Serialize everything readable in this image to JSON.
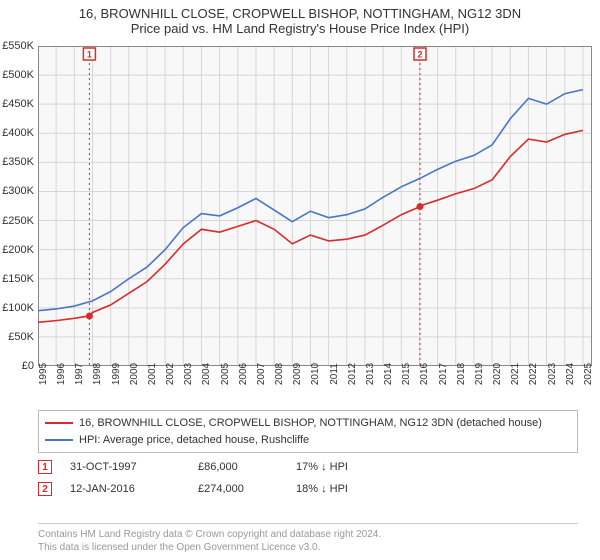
{
  "title_line1": "16, BROWNHILL CLOSE, CROPWELL BISHOP, NOTTINGHAM, NG12 3DN",
  "title_line2": "Price paid vs. HM Land Registry's House Price Index (HPI)",
  "chart": {
    "type": "line",
    "background_color": "#ffffff",
    "plot_bg_color": "#f8f8f8",
    "grid_color": "#d6d6d6",
    "axis_color": "#888888",
    "y": {
      "min": 0,
      "max": 550,
      "unit": "K",
      "prefix": "£",
      "ticks": [
        0,
        50,
        100,
        150,
        200,
        250,
        300,
        350,
        400,
        450,
        500,
        550
      ]
    },
    "x": {
      "min": 1995,
      "max": 2025.5,
      "ticks": [
        1995,
        1996,
        1997,
        1998,
        1999,
        2000,
        2001,
        2002,
        2003,
        2004,
        2005,
        2006,
        2007,
        2008,
        2009,
        2010,
        2011,
        2012,
        2013,
        2014,
        2015,
        2016,
        2017,
        2018,
        2019,
        2020,
        2021,
        2022,
        2023,
        2024,
        2025
      ]
    },
    "series": [
      {
        "name": "property",
        "label": "16, BROWNHILL CLOSE, CROPWELL BISHOP, NOTTINGHAM, NG12 3DN (detached house)",
        "color": "#d92b2b",
        "line_width": 1.6,
        "data": [
          [
            1995,
            75
          ],
          [
            1996,
            78
          ],
          [
            1997,
            82
          ],
          [
            1997.83,
            86
          ],
          [
            1998,
            92
          ],
          [
            1999,
            105
          ],
          [
            2000,
            125
          ],
          [
            2001,
            145
          ],
          [
            2002,
            175
          ],
          [
            2003,
            210
          ],
          [
            2004,
            235
          ],
          [
            2005,
            230
          ],
          [
            2006,
            240
          ],
          [
            2007,
            250
          ],
          [
            2008,
            235
          ],
          [
            2009,
            210
          ],
          [
            2010,
            225
          ],
          [
            2011,
            215
          ],
          [
            2012,
            218
          ],
          [
            2013,
            225
          ],
          [
            2014,
            242
          ],
          [
            2015,
            260
          ],
          [
            2016.03,
            274
          ],
          [
            2016,
            275
          ],
          [
            2017,
            285
          ],
          [
            2018,
            296
          ],
          [
            2019,
            305
          ],
          [
            2020,
            320
          ],
          [
            2021,
            360
          ],
          [
            2022,
            390
          ],
          [
            2023,
            385
          ],
          [
            2024,
            398
          ],
          [
            2025,
            405
          ]
        ]
      },
      {
        "name": "hpi",
        "label": "HPI: Average price, detached house, Rushcliffe",
        "color": "#4a74c9",
        "line_width": 1.6,
        "data": [
          [
            1995,
            95
          ],
          [
            1996,
            98
          ],
          [
            1997,
            103
          ],
          [
            1998,
            112
          ],
          [
            1999,
            128
          ],
          [
            2000,
            150
          ],
          [
            2001,
            170
          ],
          [
            2002,
            200
          ],
          [
            2003,
            238
          ],
          [
            2004,
            262
          ],
          [
            2005,
            258
          ],
          [
            2006,
            272
          ],
          [
            2007,
            288
          ],
          [
            2008,
            268
          ],
          [
            2009,
            248
          ],
          [
            2010,
            266
          ],
          [
            2011,
            255
          ],
          [
            2012,
            260
          ],
          [
            2013,
            270
          ],
          [
            2014,
            290
          ],
          [
            2015,
            308
          ],
          [
            2016,
            322
          ],
          [
            2017,
            338
          ],
          [
            2018,
            352
          ],
          [
            2019,
            362
          ],
          [
            2020,
            380
          ],
          [
            2021,
            425
          ],
          [
            2022,
            460
          ],
          [
            2023,
            450
          ],
          [
            2024,
            468
          ],
          [
            2025,
            475
          ]
        ]
      }
    ],
    "markers": [
      {
        "n": "1",
        "x": 1997.83,
        "y": 86,
        "color": "#d92b2b"
      },
      {
        "n": "2",
        "x": 2016.03,
        "y": 274,
        "color": "#d92b2b"
      }
    ],
    "annotations": [
      {
        "n": "1",
        "x": 1997.83,
        "color": "#d92b2b",
        "dash": "2,3"
      },
      {
        "n": "2",
        "x": 2016.03,
        "color": "#d92b2b",
        "dash": "2,3"
      }
    ]
  },
  "events": [
    {
      "n": "1",
      "date": "31-OCT-1997",
      "price": "£86,000",
      "diff": "17% ↓ HPI",
      "color": "#d92b2b"
    },
    {
      "n": "2",
      "date": "12-JAN-2016",
      "price": "£274,000",
      "diff": "18% ↓ HPI",
      "color": "#d92b2b"
    }
  ],
  "footer_line1": "Contains HM Land Registry data © Crown copyright and database right 2024.",
  "footer_line2": "This data is licensed under the Open Government Licence v3.0.",
  "label_fontsize": 11,
  "tick_fontsize": 10
}
